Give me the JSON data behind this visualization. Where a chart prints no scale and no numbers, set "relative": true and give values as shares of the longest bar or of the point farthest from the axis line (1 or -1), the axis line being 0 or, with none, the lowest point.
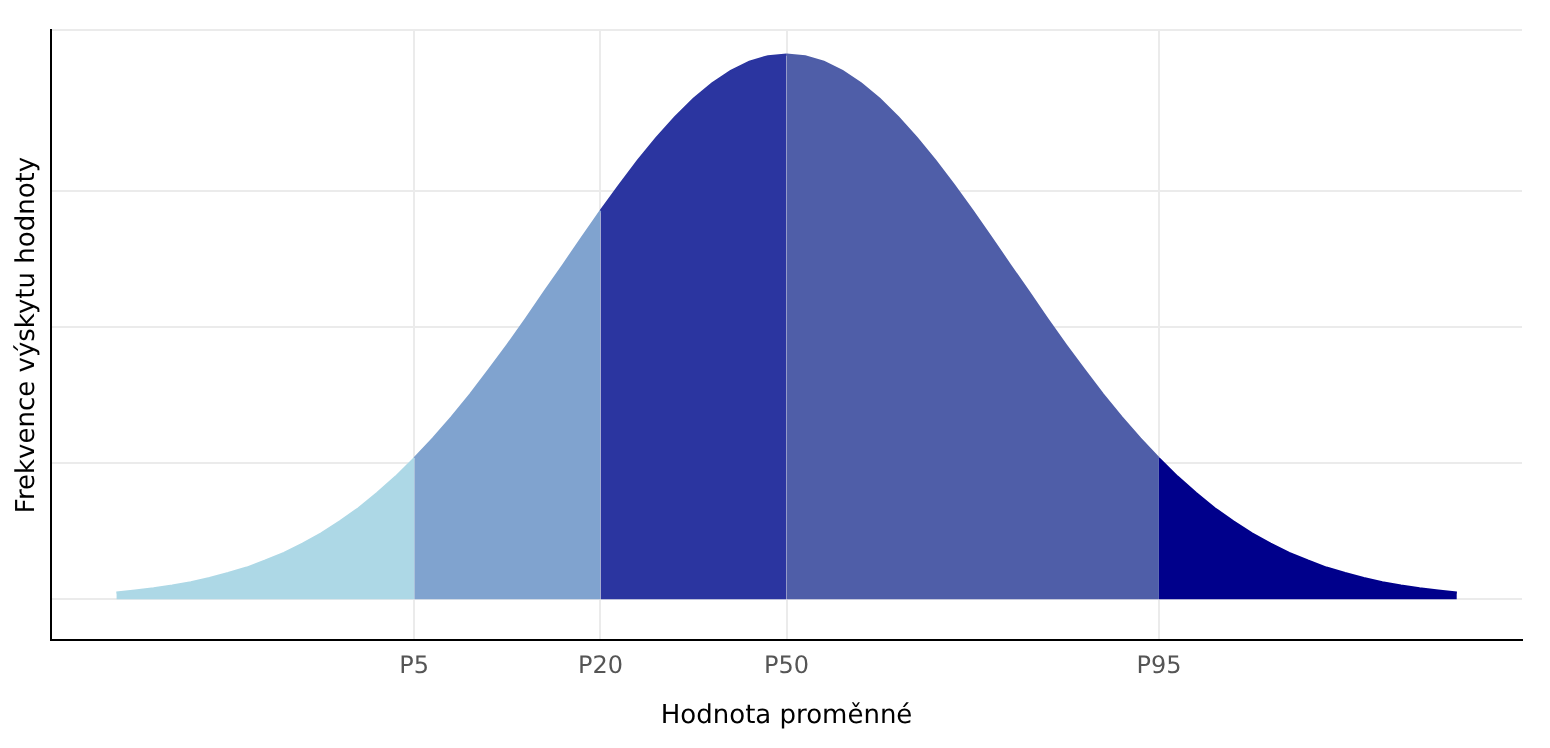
{
  "chart_data": {
    "type": "area",
    "relative": true,
    "xlabel": "Hodnota proměnné",
    "ylabel": "Frekvence výskytu hodnoty",
    "categories": [
      null,
      null,
      null,
      null,
      null,
      null,
      null,
      null,
      null,
      null,
      null,
      null,
      null,
      null,
      null,
      null,
      "P5",
      null,
      null,
      null,
      null,
      null,
      null,
      null,
      null,
      null,
      "P20",
      null,
      null,
      null,
      null,
      null,
      null,
      null,
      null,
      null,
      "P50",
      null,
      null,
      null,
      null,
      null,
      null,
      null,
      null,
      null,
      null,
      null,
      null,
      null,
      null,
      null,
      null,
      null,
      null,
      null,
      "P95",
      null,
      null,
      null,
      null,
      null,
      null,
      null,
      null,
      null,
      null,
      null,
      null,
      null,
      null,
      null,
      null
    ],
    "tick_labels": "x",
    "grid": true,
    "legend": false,
    "series": [
      {
        "color": "#add8e6",
        "values": [
          0.012,
          0.016,
          0.02,
          0.025,
          0.031,
          0.039,
          0.048,
          0.058,
          0.071,
          0.085,
          0.102,
          0.121,
          0.143,
          0.167,
          0.195,
          0.225,
          0.259,
          null,
          null,
          null,
          null,
          null,
          null,
          null,
          null,
          null,
          null,
          null,
          null,
          null,
          null,
          null,
          null,
          null,
          null,
          null,
          null,
          null,
          null,
          null,
          null,
          null,
          null,
          null,
          null,
          null,
          null,
          null,
          null,
          null,
          null,
          null,
          null,
          null,
          null,
          null,
          null,
          null,
          null,
          null,
          null,
          null,
          null,
          null,
          null,
          null,
          null,
          null,
          null,
          null,
          null,
          null,
          null
        ]
      },
      {
        "color": "#80a3cf",
        "values": [
          null,
          null,
          null,
          null,
          null,
          null,
          null,
          null,
          null,
          null,
          null,
          null,
          null,
          null,
          null,
          null,
          0.259,
          0.295,
          0.334,
          0.376,
          0.421,
          0.467,
          0.515,
          0.565,
          0.614,
          0.664,
          0.713,
          null,
          null,
          null,
          null,
          null,
          null,
          null,
          null,
          null,
          null,
          null,
          null,
          null,
          null,
          null,
          null,
          null,
          null,
          null,
          null,
          null,
          null,
          null,
          null,
          null,
          null,
          null,
          null,
          null,
          null,
          null,
          null,
          null,
          null,
          null,
          null,
          null,
          null,
          null,
          null,
          null,
          null,
          null,
          null,
          null,
          null
        ]
      },
      {
        "color": "#2b35a0",
        "values": [
          null,
          null,
          null,
          null,
          null,
          null,
          null,
          null,
          null,
          null,
          null,
          null,
          null,
          null,
          null,
          null,
          null,
          null,
          null,
          null,
          null,
          null,
          null,
          null,
          null,
          null,
          0.713,
          0.76,
          0.805,
          0.847,
          0.885,
          0.919,
          0.947,
          0.97,
          0.987,
          0.997,
          1,
          null,
          null,
          null,
          null,
          null,
          null,
          null,
          null,
          null,
          null,
          null,
          null,
          null,
          null,
          null,
          null,
          null,
          null,
          null,
          null,
          null,
          null,
          null,
          null,
          null,
          null,
          null,
          null,
          null,
          null,
          null,
          null,
          null,
          null,
          null,
          null
        ]
      },
      {
        "color": "#4f5ea8",
        "values": [
          null,
          null,
          null,
          null,
          null,
          null,
          null,
          null,
          null,
          null,
          null,
          null,
          null,
          null,
          null,
          null,
          null,
          null,
          null,
          null,
          null,
          null,
          null,
          null,
          null,
          null,
          null,
          null,
          null,
          null,
          null,
          null,
          null,
          null,
          null,
          null,
          1,
          0.997,
          0.987,
          0.97,
          0.947,
          0.919,
          0.885,
          0.847,
          0.805,
          0.76,
          0.713,
          0.664,
          0.614,
          0.565,
          0.515,
          0.467,
          0.421,
          0.376,
          0.334,
          0.295,
          0.259,
          null,
          null,
          null,
          null,
          null,
          null,
          null,
          null,
          null,
          null,
          null,
          null,
          null,
          null,
          null,
          null
        ]
      },
      {
        "color": "#00008b",
        "values": [
          null,
          null,
          null,
          null,
          null,
          null,
          null,
          null,
          null,
          null,
          null,
          null,
          null,
          null,
          null,
          null,
          null,
          null,
          null,
          null,
          null,
          null,
          null,
          null,
          null,
          null,
          null,
          null,
          null,
          null,
          null,
          null,
          null,
          null,
          null,
          null,
          null,
          null,
          null,
          null,
          null,
          null,
          null,
          null,
          null,
          null,
          null,
          null,
          null,
          null,
          null,
          null,
          null,
          null,
          null,
          null,
          0.259,
          0.225,
          0.195,
          0.167,
          0.143,
          0.121,
          0.102,
          0.085,
          0.071,
          0.058,
          0.048,
          0.039,
          0.031,
          0.025,
          0.02,
          0.016,
          0.012
        ]
      }
    ]
  }
}
